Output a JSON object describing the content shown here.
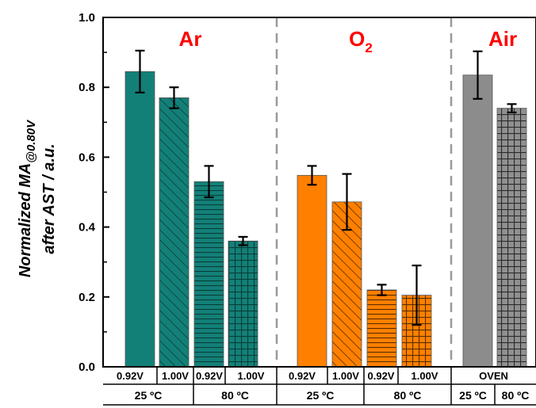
{
  "chart_data": {
    "type": "bar",
    "ylabel_line1": "Normalized MA",
    "ylabel_sub": "@0.80V",
    "ylabel_line2": "after AST / a.u.",
    "ylim": [
      0,
      1.0
    ],
    "yticks": [
      "0.0",
      "0.2",
      "0.4",
      "0.6",
      "0.8",
      "1.0"
    ],
    "groups": [
      {
        "name": "Ar",
        "name_main": "Ar",
        "name_sub": "",
        "color": "#138078"
      },
      {
        "name": "O2",
        "name_main": "O",
        "name_sub": "2",
        "color": "#ff8000"
      },
      {
        "name": "Air",
        "name_main": "Air",
        "name_sub": "",
        "color": "#808080"
      }
    ],
    "bars": [
      {
        "group": "Ar",
        "voltage": "0.92V",
        "temperature": "25 ºC",
        "value": 0.845,
        "error": 0.06,
        "pattern": "solid"
      },
      {
        "group": "Ar",
        "voltage": "1.00V",
        "temperature": "25 ºC",
        "value": 0.77,
        "error": 0.03,
        "pattern": "diagonal"
      },
      {
        "group": "Ar",
        "voltage": "0.92V",
        "temperature": "80 ºC",
        "value": 0.53,
        "error": 0.045,
        "pattern": "horizontal"
      },
      {
        "group": "Ar",
        "voltage": "1.00V",
        "temperature": "80 ºC",
        "value": 0.36,
        "error": 0.012,
        "pattern": "grid"
      },
      {
        "group": "O2",
        "voltage": "0.92V",
        "temperature": "25 ºC",
        "value": 0.548,
        "error": 0.027,
        "pattern": "solid"
      },
      {
        "group": "O2",
        "voltage": "1.00V",
        "temperature": "25 ºC",
        "value": 0.472,
        "error": 0.08,
        "pattern": "diagonal"
      },
      {
        "group": "O2",
        "voltage": "0.92V",
        "temperature": "80 ºC",
        "value": 0.22,
        "error": 0.015,
        "pattern": "horizontal"
      },
      {
        "group": "O2",
        "voltage": "1.00V",
        "temperature": "80 ºC",
        "value": 0.205,
        "error": 0.085,
        "pattern": "grid"
      },
      {
        "group": "Air",
        "voltage": "OVEN",
        "temperature": "25 ºC",
        "value": 0.835,
        "error": 0.068,
        "pattern": "solid"
      },
      {
        "group": "Air",
        "voltage": "OVEN",
        "temperature": "80 ºC",
        "value": 0.74,
        "error": 0.012,
        "pattern": "grid"
      }
    ],
    "row1_labels": [
      "0.92V",
      "1.00V",
      "0.92V",
      "1.00V",
      "0.92V",
      "1.00V",
      "0.92V",
      "1.00V",
      "OVEN"
    ],
    "row2_labels": [
      "25 ºC",
      "80 ºC",
      "25 ºC",
      "80 ºC",
      "25 ºC",
      "80 ºC"
    ]
  }
}
